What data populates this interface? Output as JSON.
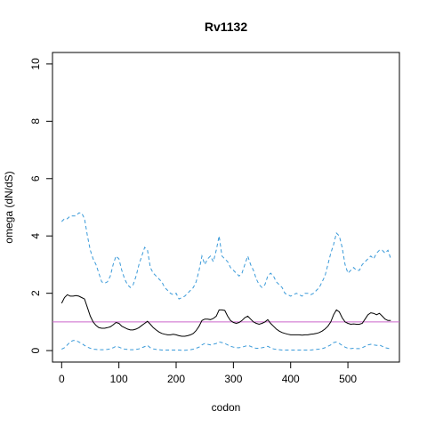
{
  "chart_data": {
    "type": "line",
    "title": "Rv1132",
    "xlabel": "codon",
    "ylabel": "omega (dN/dS)",
    "xlim": [
      -16,
      590
    ],
    "ylim": [
      -0.4,
      10.4
    ],
    "xticks": [
      0,
      100,
      200,
      300,
      400,
      500
    ],
    "yticks": [
      0,
      2,
      4,
      6,
      8,
      10
    ],
    "grid": false,
    "reference_line": {
      "y": 1,
      "color": "#cc66cc"
    },
    "series": [
      {
        "style": "dashed",
        "color": "#3a9ad9",
        "x": [
          0,
          5,
          10,
          15,
          20,
          25,
          30,
          35,
          40,
          45,
          50,
          55,
          60,
          65,
          70,
          75,
          80,
          85,
          90,
          95,
          100,
          105,
          110,
          115,
          120,
          125,
          130,
          135,
          140,
          145,
          150,
          155,
          160,
          165,
          170,
          175,
          180,
          185,
          190,
          195,
          200,
          205,
          210,
          215,
          220,
          225,
          230,
          235,
          240,
          245,
          250,
          255,
          260,
          265,
          270,
          275,
          280,
          285,
          290,
          295,
          300,
          305,
          310,
          315,
          320,
          325,
          330,
          335,
          340,
          345,
          350,
          355,
          360,
          365,
          370,
          375,
          380,
          385,
          390,
          395,
          400,
          405,
          410,
          415,
          420,
          425,
          430,
          435,
          440,
          445,
          450,
          455,
          460,
          465,
          470,
          475,
          480,
          485,
          490,
          495,
          500,
          505,
          510,
          515,
          520,
          525,
          530,
          535,
          540,
          545,
          550,
          555,
          560,
          565,
          570,
          575
        ],
        "y": [
          4.5,
          4.6,
          4.6,
          4.7,
          4.7,
          4.7,
          4.8,
          4.8,
          4.6,
          4.0,
          3.5,
          3.2,
          3.0,
          2.7,
          2.4,
          2.35,
          2.4,
          2.6,
          3.0,
          3.3,
          3.2,
          2.8,
          2.5,
          2.3,
          2.2,
          2.3,
          2.6,
          3.0,
          3.3,
          3.6,
          3.5,
          2.9,
          2.7,
          2.6,
          2.5,
          2.4,
          2.2,
          2.1,
          2.0,
          1.95,
          2.0,
          1.8,
          1.85,
          1.9,
          2.0,
          2.1,
          2.2,
          2.4,
          2.8,
          3.3,
          3.0,
          3.2,
          3.3,
          3.1,
          3.5,
          4.0,
          3.3,
          3.2,
          3.1,
          2.9,
          2.8,
          2.7,
          2.6,
          2.7,
          3.0,
          3.3,
          3.0,
          2.8,
          2.5,
          2.3,
          2.2,
          2.3,
          2.6,
          2.7,
          2.6,
          2.4,
          2.3,
          2.2,
          2.0,
          1.95,
          1.9,
          1.95,
          2.0,
          1.95,
          1.9,
          2.0,
          2.0,
          1.95,
          2.0,
          2.1,
          2.2,
          2.4,
          2.6,
          3.0,
          3.4,
          3.7,
          4.1,
          4.0,
          3.6,
          3.0,
          2.7,
          2.8,
          2.9,
          2.8,
          2.8,
          3.0,
          3.1,
          3.2,
          3.3,
          3.2,
          3.4,
          3.5,
          3.5,
          3.4,
          3.5,
          3.2
        ]
      },
      {
        "style": "solid",
        "color": "#000000",
        "x": [
          0,
          5,
          10,
          15,
          20,
          25,
          30,
          35,
          40,
          45,
          50,
          55,
          60,
          65,
          70,
          75,
          80,
          85,
          90,
          95,
          100,
          105,
          110,
          115,
          120,
          125,
          130,
          135,
          140,
          145,
          150,
          155,
          160,
          165,
          170,
          175,
          180,
          185,
          190,
          195,
          200,
          205,
          210,
          215,
          220,
          225,
          230,
          235,
          240,
          245,
          250,
          255,
          260,
          265,
          270,
          275,
          280,
          285,
          290,
          295,
          300,
          305,
          310,
          315,
          320,
          325,
          330,
          335,
          340,
          345,
          350,
          355,
          360,
          365,
          370,
          375,
          380,
          385,
          390,
          395,
          400,
          405,
          410,
          415,
          420,
          425,
          430,
          435,
          440,
          445,
          450,
          455,
          460,
          465,
          470,
          475,
          480,
          485,
          490,
          495,
          500,
          505,
          510,
          515,
          520,
          525,
          530,
          535,
          540,
          545,
          550,
          555,
          560,
          565,
          570,
          575
        ],
        "y": [
          1.65,
          1.85,
          1.95,
          1.9,
          1.9,
          1.92,
          1.9,
          1.85,
          1.8,
          1.5,
          1.2,
          1.0,
          0.88,
          0.8,
          0.78,
          0.78,
          0.8,
          0.83,
          0.9,
          0.98,
          0.95,
          0.85,
          0.8,
          0.75,
          0.72,
          0.72,
          0.75,
          0.8,
          0.88,
          0.95,
          1.02,
          0.92,
          0.8,
          0.72,
          0.65,
          0.6,
          0.57,
          0.55,
          0.55,
          0.57,
          0.55,
          0.52,
          0.5,
          0.5,
          0.52,
          0.55,
          0.6,
          0.7,
          0.85,
          1.05,
          1.1,
          1.1,
          1.08,
          1.12,
          1.2,
          1.42,
          1.42,
          1.4,
          1.2,
          1.05,
          0.98,
          0.95,
          0.98,
          1.05,
          1.15,
          1.2,
          1.1,
          1.0,
          0.95,
          0.92,
          0.95,
          1.0,
          1.08,
          0.95,
          0.85,
          0.75,
          0.68,
          0.63,
          0.6,
          0.57,
          0.55,
          0.55,
          0.55,
          0.55,
          0.54,
          0.55,
          0.55,
          0.57,
          0.58,
          0.6,
          0.63,
          0.68,
          0.75,
          0.85,
          1.0,
          1.25,
          1.42,
          1.35,
          1.15,
          1.0,
          0.95,
          0.92,
          0.93,
          0.92,
          0.92,
          0.95,
          1.1,
          1.25,
          1.32,
          1.3,
          1.25,
          1.3,
          1.2,
          1.1,
          1.05,
          1.05
        ]
      },
      {
        "style": "dashed",
        "color": "#3a9ad9",
        "x": [
          0,
          5,
          10,
          15,
          20,
          25,
          30,
          35,
          40,
          45,
          50,
          55,
          60,
          65,
          70,
          75,
          80,
          85,
          90,
          95,
          100,
          105,
          110,
          115,
          120,
          125,
          130,
          135,
          140,
          145,
          150,
          155,
          160,
          165,
          170,
          175,
          180,
          185,
          190,
          195,
          200,
          205,
          210,
          215,
          220,
          225,
          230,
          235,
          240,
          245,
          250,
          255,
          260,
          265,
          270,
          275,
          280,
          285,
          290,
          295,
          300,
          305,
          310,
          315,
          320,
          325,
          330,
          335,
          340,
          345,
          350,
          355,
          360,
          365,
          370,
          375,
          380,
          385,
          390,
          395,
          400,
          405,
          410,
          415,
          420,
          425,
          430,
          435,
          440,
          445,
          450,
          455,
          460,
          465,
          470,
          475,
          480,
          485,
          490,
          495,
          500,
          505,
          510,
          515,
          520,
          525,
          530,
          535,
          540,
          545,
          550,
          555,
          560,
          565,
          570,
          575
        ],
        "y": [
          0.05,
          0.1,
          0.2,
          0.3,
          0.35,
          0.35,
          0.3,
          0.25,
          0.18,
          0.12,
          0.08,
          0.05,
          0.04,
          0.03,
          0.03,
          0.03,
          0.04,
          0.06,
          0.1,
          0.15,
          0.12,
          0.08,
          0.05,
          0.04,
          0.03,
          0.03,
          0.04,
          0.06,
          0.1,
          0.14,
          0.18,
          0.1,
          0.06,
          0.04,
          0.03,
          0.02,
          0.02,
          0.02,
          0.02,
          0.02,
          0.02,
          0.02,
          0.01,
          0.01,
          0.02,
          0.03,
          0.05,
          0.08,
          0.12,
          0.2,
          0.25,
          0.22,
          0.2,
          0.22,
          0.25,
          0.3,
          0.28,
          0.25,
          0.2,
          0.15,
          0.12,
          0.1,
          0.1,
          0.12,
          0.15,
          0.18,
          0.15,
          0.1,
          0.08,
          0.08,
          0.1,
          0.12,
          0.15,
          0.1,
          0.06,
          0.04,
          0.03,
          0.02,
          0.02,
          0.02,
          0.02,
          0.02,
          0.02,
          0.02,
          0.02,
          0.02,
          0.02,
          0.02,
          0.03,
          0.04,
          0.05,
          0.07,
          0.1,
          0.15,
          0.2,
          0.28,
          0.3,
          0.25,
          0.18,
          0.12,
          0.08,
          0.07,
          0.08,
          0.07,
          0.07,
          0.1,
          0.15,
          0.2,
          0.22,
          0.2,
          0.18,
          0.2,
          0.15,
          0.1,
          0.08,
          0.05
        ]
      }
    ]
  }
}
